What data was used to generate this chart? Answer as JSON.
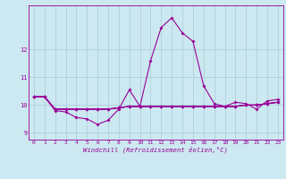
{
  "xlabel": "Windchill (Refroidissement éolien,°C)",
  "x": [
    0,
    1,
    2,
    3,
    4,
    5,
    6,
    7,
    8,
    9,
    10,
    11,
    12,
    13,
    14,
    15,
    16,
    17,
    18,
    19,
    20,
    21,
    22,
    23
  ],
  "line1": [
    10.3,
    10.3,
    9.8,
    9.75,
    9.55,
    9.5,
    9.3,
    9.45,
    9.85,
    10.55,
    9.95,
    11.6,
    12.8,
    13.15,
    12.6,
    12.3,
    10.7,
    10.05,
    9.95,
    10.1,
    10.05,
    9.85,
    10.15,
    10.2
  ],
  "line2": [
    10.3,
    10.3,
    9.85,
    9.85,
    9.85,
    9.85,
    9.85,
    9.85,
    9.9,
    9.95,
    9.95,
    9.95,
    9.95,
    9.95,
    9.95,
    9.95,
    9.95,
    9.95,
    9.95,
    9.95,
    10.0,
    10.0,
    10.05,
    10.1
  ],
  "line3": [
    10.3,
    10.3,
    9.85,
    9.85,
    9.85,
    9.85,
    9.85,
    9.85,
    9.9,
    9.95,
    9.95,
    9.95,
    9.95,
    9.95,
    9.95,
    9.95,
    9.95,
    9.95,
    9.95,
    9.95,
    10.0,
    10.0,
    10.05,
    10.1
  ],
  "line4": [
    10.3,
    10.3,
    9.85,
    9.85,
    9.85,
    9.85,
    9.85,
    9.85,
    9.9,
    9.95,
    9.95,
    9.95,
    9.95,
    9.95,
    9.95,
    9.95,
    9.95,
    9.95,
    9.95,
    9.95,
    10.0,
    10.0,
    10.05,
    10.1
  ],
  "ylim": [
    8.75,
    13.6
  ],
  "yticks": [
    9,
    10,
    11,
    12
  ],
  "xtick_labels": [
    "0",
    "1",
    "2",
    "3",
    "4",
    "5",
    "6",
    "7",
    "8",
    "9",
    "10",
    "11",
    "12",
    "13",
    "14",
    "15",
    "16",
    "17",
    "18",
    "19",
    "20",
    "21",
    "22",
    "23"
  ],
  "line_color": "#990099",
  "bg_color": "#cce8f0",
  "grid_color": "#aaccd8",
  "marker": "D",
  "marker_size": 2.0,
  "line_width": 0.8,
  "tick_fontsize": 4.5,
  "xlabel_fontsize": 5.2
}
